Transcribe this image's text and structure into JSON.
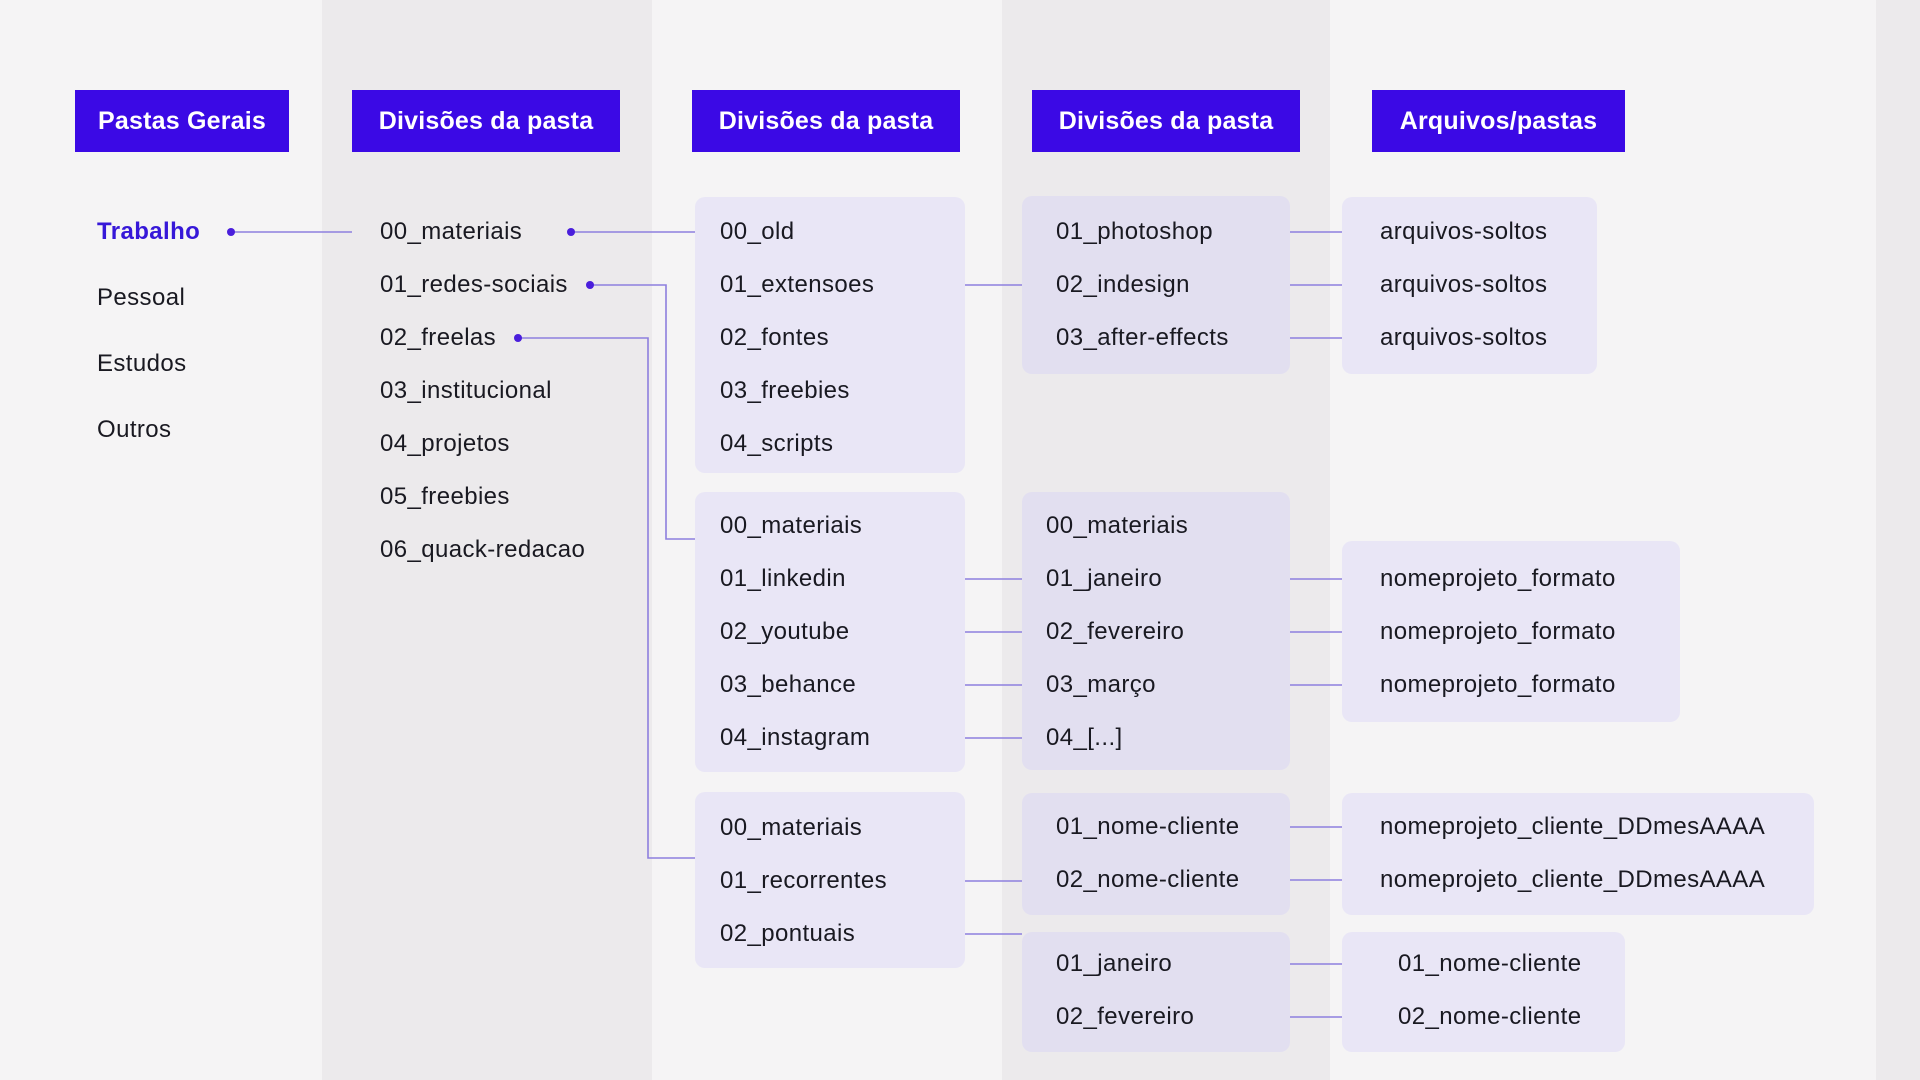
{
  "diagram": {
    "column_headers": [
      "Pastas Gerais",
      "Divisões da pasta",
      "Divisões da pasta",
      "Divisões da pasta",
      "Arquivos/pastas"
    ],
    "root_folders": {
      "active_item": "Trabalho",
      "items": [
        "Trabalho",
        "Pessoal",
        "Estudos",
        "Outros"
      ]
    },
    "level2_items": [
      "00_materiais",
      "01_redes-sociais",
      "02_freelas",
      "03_institucional",
      "04_projetos",
      "05_freebies",
      "06_quack-redacao"
    ],
    "level3_groups": [
      [
        "00_old",
        "01_extensoes",
        "02_fontes",
        "03_freebies",
        "04_scripts"
      ],
      [
        "00_materiais",
        "01_linkedin",
        "02_youtube",
        "03_behance",
        "04_instagram"
      ],
      [
        "00_materiais",
        "01_recorrentes",
        "02_pontuais"
      ]
    ],
    "level4_groups": [
      [
        "01_photoshop",
        "02_indesign",
        "03_after-effects"
      ],
      [
        "00_materiais",
        "01_janeiro",
        "02_fevereiro",
        "03_março",
        "04_[...]"
      ],
      [
        "01_nome-cliente",
        "02_nome-cliente"
      ],
      [
        "01_janeiro",
        "02_fevereiro"
      ]
    ],
    "level5_groups": [
      [
        "arquivos-soltos",
        "arquivos-soltos",
        "arquivos-soltos"
      ],
      [
        "nomeprojeto_formato",
        "nomeprojeto_formato",
        "nomeprojeto_formato"
      ],
      [
        "nomeprojeto_cliente_DDmesAAAA",
        "nomeprojeto_cliente_DDmesAAAA"
      ],
      [
        "01_nome-cliente",
        "02_nome-cliente"
      ]
    ],
    "colors": {
      "background": "#F5F4F5",
      "stripe": "#ECEAEC",
      "header_bg": "#3B09E5",
      "header_text": "#FFFFFF",
      "text": "#191921",
      "active_item": "#3617D8",
      "box_light": "#E9E6F6",
      "box_dark": "#E2DFF0",
      "connector_line": "#8D7FDE",
      "connector_dot": "#4A1EDC"
    }
  }
}
